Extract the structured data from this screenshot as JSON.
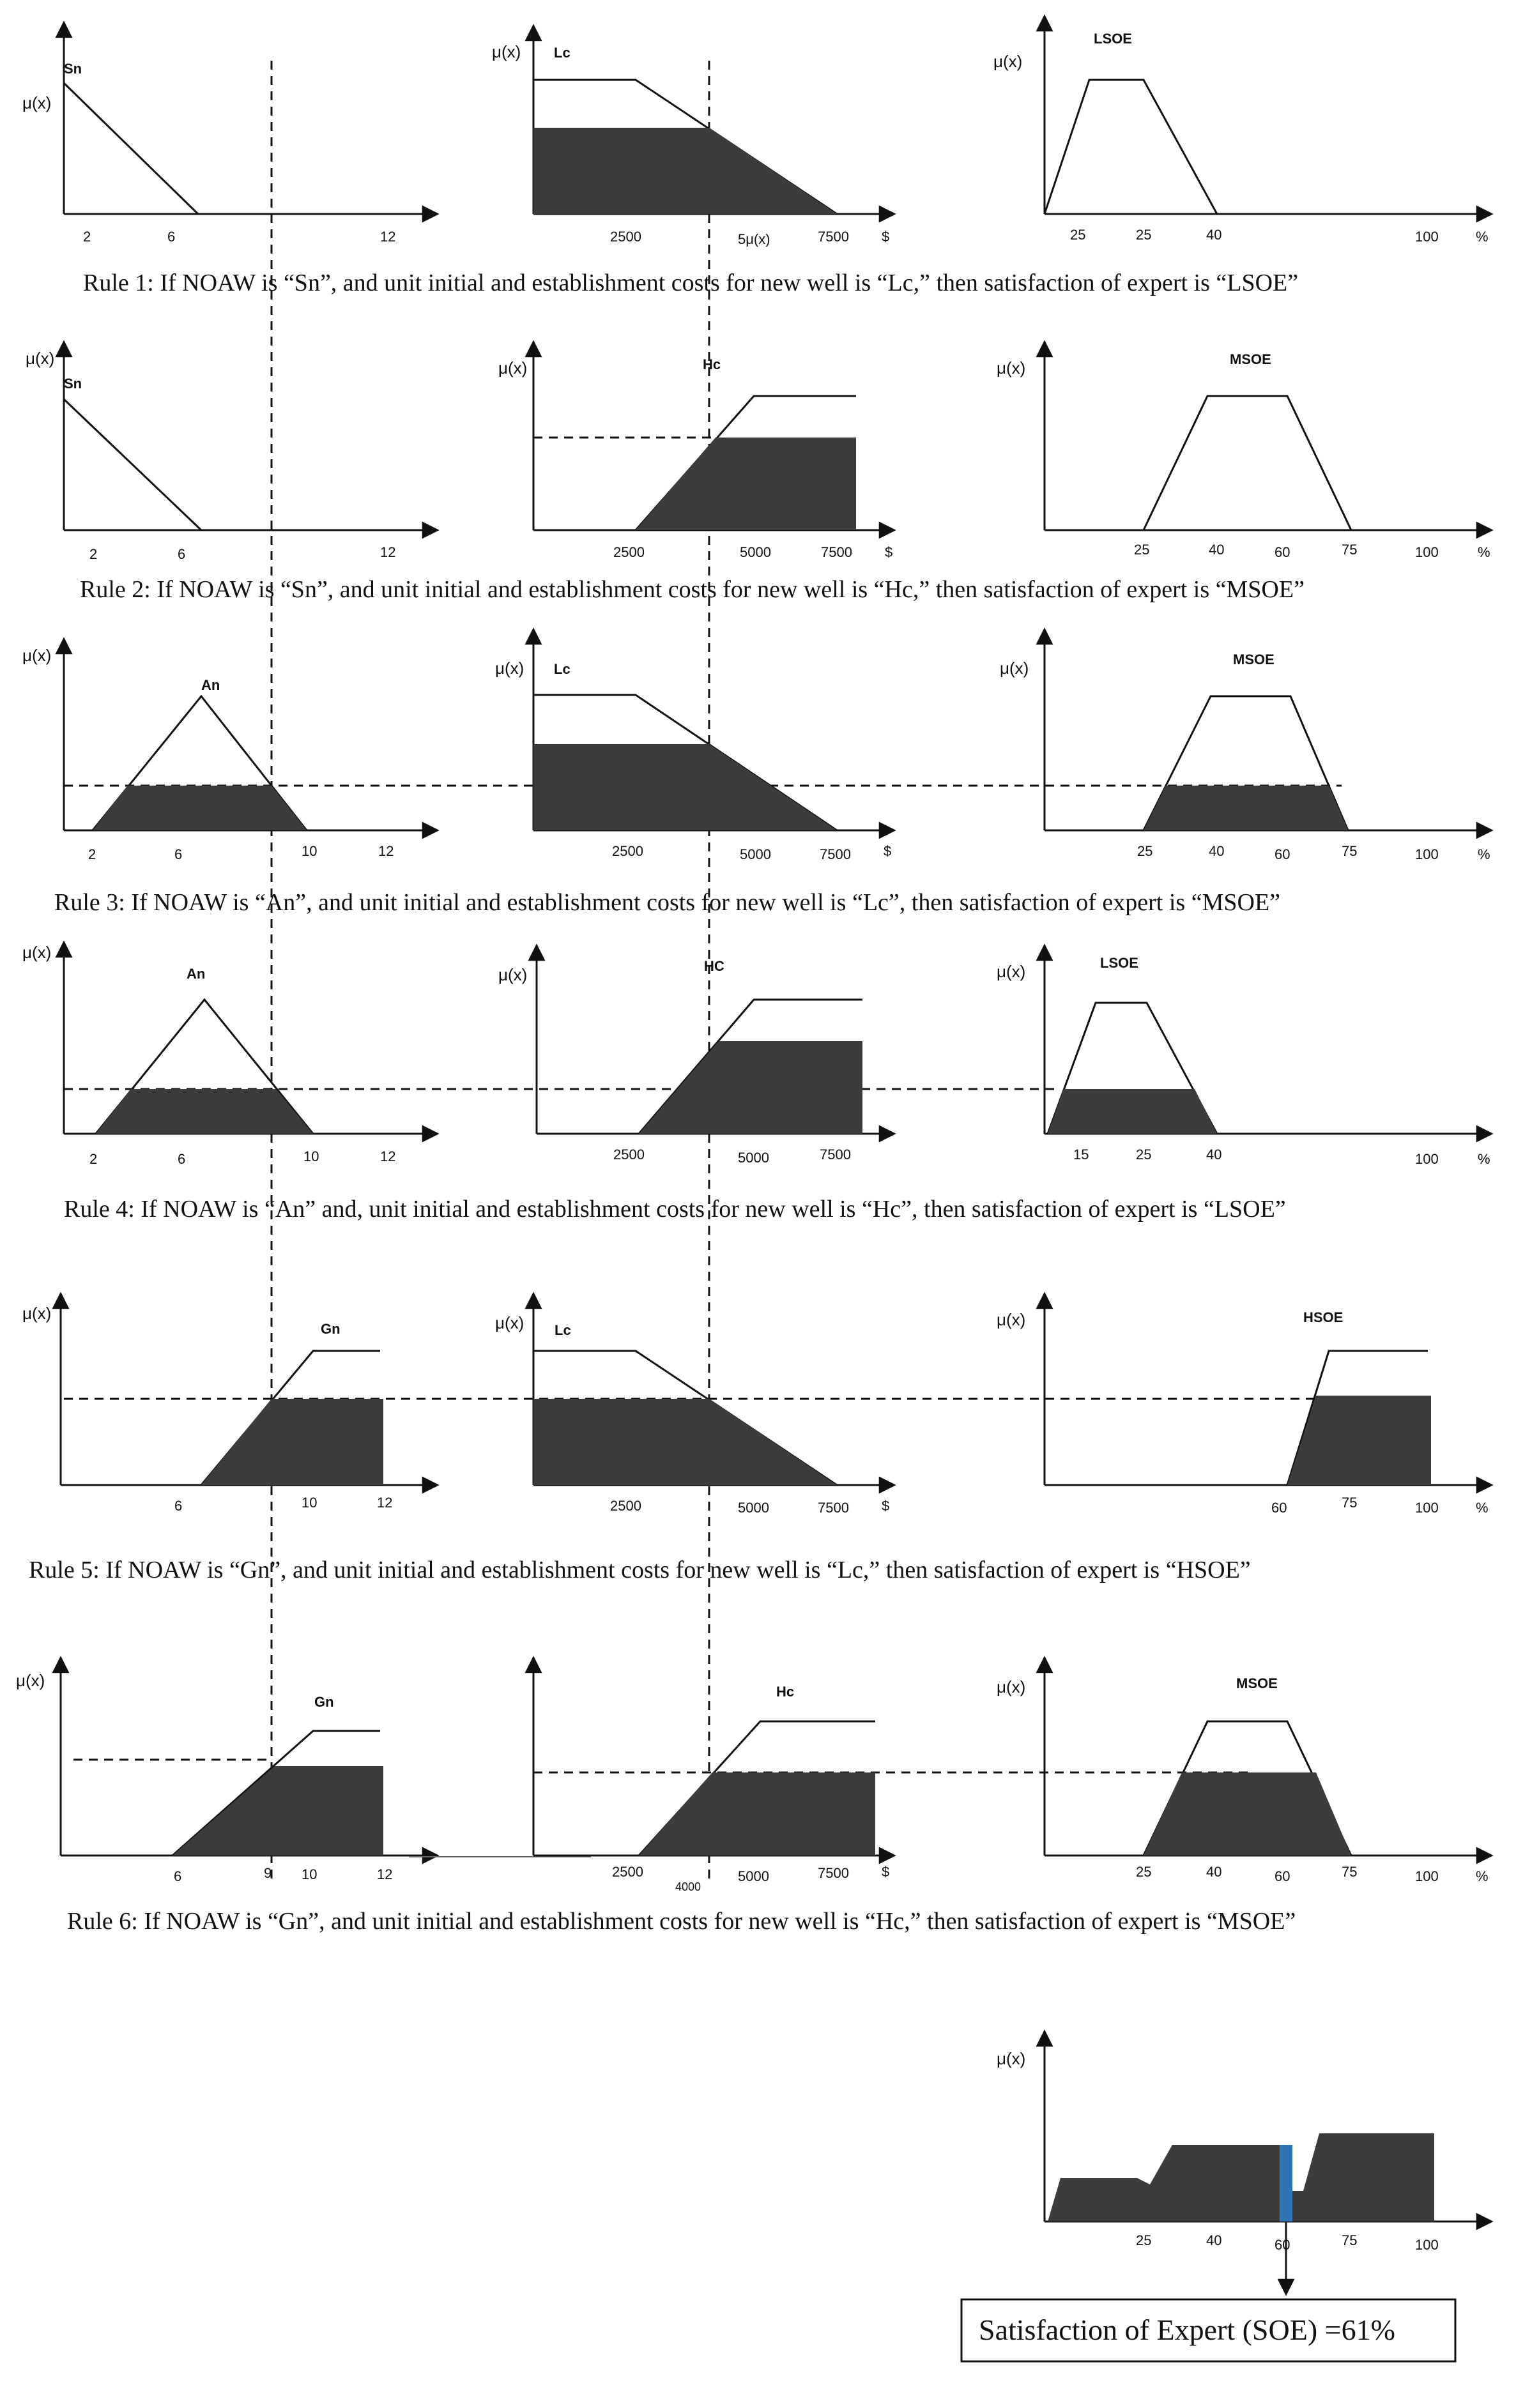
{
  "colors": {
    "fill": "#3c3c3c",
    "line": "#111111",
    "result_bar": "#2f74b5"
  },
  "y_label": "μ(x)",
  "rules": [
    {
      "caption": "Rule 1: If NOAW is “Sn”, and unit initial and establishment costs for new well is “Lc,” then satisfaction of expert is “LSOE”",
      "noaw": {
        "set": "Sn",
        "ticks": [
          "2",
          "6",
          "12"
        ],
        "unit": ""
      },
      "cost": {
        "set": "Lc",
        "ticks": [
          "2500",
          "5μ(x)",
          "7500"
        ],
        "unit": "$"
      },
      "soe": {
        "set": "LSOE",
        "ticks": [
          "25",
          "25",
          "40",
          "100"
        ],
        "unit": "%"
      }
    },
    {
      "caption": "Rule 2: If NOAW is “Sn”, and unit initial and establishment costs for new well is “Hc,” then satisfaction of expert is “MSOE”",
      "noaw": {
        "set": "Sn",
        "ticks": [
          "2",
          "6",
          "12"
        ],
        "unit": ""
      },
      "cost": {
        "set": "Hc",
        "ticks": [
          "2500",
          "5000",
          "7500"
        ],
        "unit": "$"
      },
      "soe": {
        "set": "MSOE",
        "ticks": [
          "25",
          "40",
          "60",
          "75",
          "100"
        ],
        "unit": "%"
      }
    },
    {
      "caption": "Rule 3: If NOAW is “An”, and unit initial and establishment costs for new well is “Lc”, then satisfaction of expert is “MSOE”",
      "noaw": {
        "set": "An",
        "ticks": [
          "2",
          "6",
          "10",
          "12"
        ],
        "unit": ""
      },
      "cost": {
        "set": "Lc",
        "ticks": [
          "2500",
          "5000",
          "7500"
        ],
        "unit": "$"
      },
      "soe": {
        "set": "MSOE",
        "ticks": [
          "25",
          "40",
          "60",
          "75",
          "100"
        ],
        "unit": "%"
      }
    },
    {
      "caption": "Rule 4: If NOAW is “An” and, unit initial and establishment costs for new well is “Hc”, then satisfaction of expert is “LSOE”",
      "noaw": {
        "set": "An",
        "ticks": [
          "2",
          "6",
          "10",
          "12"
        ],
        "unit": ""
      },
      "cost": {
        "set": "HC",
        "ticks": [
          "2500",
          "5000",
          "7500"
        ],
        "unit": ""
      },
      "soe": {
        "set": "LSOE",
        "ticks": [
          "15",
          "25",
          "40",
          "100"
        ],
        "unit": "%"
      }
    },
    {
      "caption": "Rule 5: If NOAW is “Gn”, and unit initial and establishment costs for new well is “Lc,” then satisfaction of expert is “HSOE”",
      "noaw": {
        "set": "Gn",
        "ticks": [
          "6",
          "10",
          "12"
        ],
        "unit": ""
      },
      "cost": {
        "set": "Lc",
        "ticks": [
          "2500",
          "5000",
          "7500"
        ],
        "unit": "$"
      },
      "soe": {
        "set": "HSOE",
        "ticks": [
          "60",
          "75",
          "100"
        ],
        "unit": "%"
      }
    },
    {
      "caption": "Rule 6: If NOAW is “Gn”, and unit initial and establishment costs for new well is “Hc,” then satisfaction of expert is “MSOE”",
      "noaw": {
        "set": "Gn",
        "ticks": [
          "6",
          "9",
          "10",
          "12"
        ],
        "unit": ""
      },
      "cost": {
        "set": "Hc",
        "ticks": [
          "2500",
          "5000",
          "7500"
        ],
        "unit": "$",
        "extra_tick": "4000"
      },
      "soe": {
        "set": "MSOE",
        "ticks": [
          "25",
          "40",
          "60",
          "75",
          "100"
        ],
        "unit": "%"
      }
    }
  ],
  "aggregate": {
    "ticks": [
      "25",
      "40",
      "60",
      "75",
      "100"
    ],
    "result_text": "Satisfaction of Expert (SOE) =61%"
  }
}
